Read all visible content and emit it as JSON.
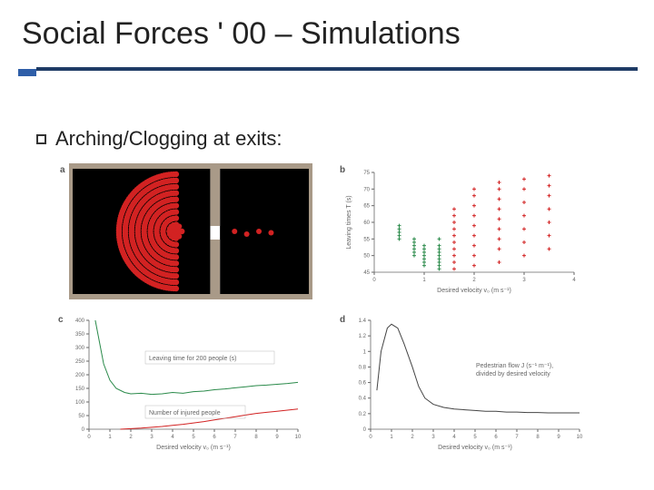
{
  "title": "Social Forces ' 00 – Simulations",
  "bullet": "Arching/Clogging at exits:",
  "panel_a": {
    "label": "a",
    "bgcolor": "#000000",
    "wallcolor": "#a99a88",
    "dotcolor": "#d22222",
    "crowd_center": [
      0.44,
      0.5
    ],
    "crowd_radius": 0.42,
    "escaped": [
      [
        0.68,
        0.5
      ],
      [
        0.73,
        0.52
      ],
      [
        0.78,
        0.5
      ],
      [
        0.83,
        0.51
      ]
    ]
  },
  "panel_b": {
    "label": "b",
    "xaxis": "Desired velocity v₀ (m s⁻¹)",
    "yaxis": "Leaving times T (s)",
    "xlim": [
      0,
      4
    ],
    "xticks": [
      0,
      1,
      2,
      3,
      4
    ],
    "ylim": [
      45,
      75
    ],
    "yticks": [
      45,
      50,
      55,
      60,
      65,
      70,
      75
    ],
    "series": [
      {
        "color": "#2a8a4a",
        "x": 0.5,
        "ys": [
          55,
          56,
          57,
          58,
          59
        ]
      },
      {
        "color": "#2a8a4a",
        "x": 0.8,
        "ys": [
          50,
          51,
          52,
          53,
          54,
          55
        ]
      },
      {
        "color": "#2a8a4a",
        "x": 1.0,
        "ys": [
          47,
          48,
          49,
          50,
          51,
          52,
          53
        ]
      },
      {
        "color": "#2a8a4a",
        "x": 1.3,
        "ys": [
          46,
          47,
          48,
          49,
          50,
          51,
          52,
          53,
          55
        ]
      },
      {
        "color": "#d22222",
        "x": 1.6,
        "ys": [
          46,
          48,
          50,
          52,
          54,
          56,
          58,
          60,
          62,
          64
        ]
      },
      {
        "color": "#d22222",
        "x": 2.0,
        "ys": [
          47,
          50,
          53,
          56,
          59,
          62,
          65,
          68,
          70
        ]
      },
      {
        "color": "#d22222",
        "x": 2.5,
        "ys": [
          48,
          52,
          55,
          58,
          61,
          64,
          67,
          70,
          72
        ]
      },
      {
        "color": "#d22222",
        "x": 3.0,
        "ys": [
          50,
          54,
          58,
          62,
          66,
          70,
          73
        ]
      },
      {
        "color": "#d22222",
        "x": 3.5,
        "ys": [
          52,
          56,
          60,
          64,
          68,
          71,
          74
        ]
      }
    ]
  },
  "panel_c": {
    "label": "c",
    "xaxis": "Desired velocity v₀ (m s⁻¹)",
    "xlim": [
      0,
      10
    ],
    "xticks": [
      0,
      1,
      2,
      3,
      4,
      5,
      6,
      7,
      8,
      9,
      10
    ],
    "ylim": [
      0,
      400
    ],
    "yticks": [
      0,
      50,
      100,
      150,
      200,
      250,
      300,
      350,
      400
    ],
    "legend1": {
      "text": "Leaving time for 200 people (s)",
      "color": "#2a8a4a"
    },
    "legend2": {
      "text": "Number of injured people",
      "color": "#d22222"
    },
    "line1": {
      "color": "#2a8a4a",
      "points": [
        [
          0.3,
          400
        ],
        [
          0.5,
          320
        ],
        [
          0.7,
          240
        ],
        [
          1,
          180
        ],
        [
          1.3,
          150
        ],
        [
          1.7,
          135
        ],
        [
          2,
          130
        ],
        [
          2.5,
          132
        ],
        [
          3,
          128
        ],
        [
          3.5,
          130
        ],
        [
          4,
          135
        ],
        [
          4.5,
          132
        ],
        [
          5,
          138
        ],
        [
          5.5,
          140
        ],
        [
          6,
          145
        ],
        [
          6.5,
          148
        ],
        [
          7,
          152
        ],
        [
          7.5,
          156
        ],
        [
          8,
          160
        ],
        [
          8.5,
          162
        ],
        [
          9,
          165
        ],
        [
          9.5,
          168
        ],
        [
          10,
          172
        ]
      ]
    },
    "line2": {
      "color": "#d22222",
      "points": [
        [
          1.5,
          0
        ],
        [
          2,
          2
        ],
        [
          2.5,
          4
        ],
        [
          3,
          7
        ],
        [
          3.5,
          10
        ],
        [
          4,
          14
        ],
        [
          4.5,
          18
        ],
        [
          5,
          23
        ],
        [
          5.5,
          28
        ],
        [
          6,
          34
        ],
        [
          6.5,
          40
        ],
        [
          7,
          46
        ],
        [
          7.5,
          52
        ],
        [
          8,
          58
        ],
        [
          8.5,
          62
        ],
        [
          9,
          66
        ],
        [
          9.5,
          70
        ],
        [
          10,
          74
        ]
      ]
    }
  },
  "panel_d": {
    "label": "d",
    "xaxis": "Desired velocity v₀ (m s⁻¹)",
    "xlim": [
      0,
      10
    ],
    "xticks": [
      0,
      1,
      2,
      3,
      4,
      5,
      6,
      7,
      8,
      9,
      10
    ],
    "ylim": [
      0,
      1.4
    ],
    "yticks": [
      0,
      0.2,
      0.4,
      0.6,
      0.8,
      1.0,
      1.2,
      1.4
    ],
    "legend": "Pedestrian flow J (s⁻¹ m⁻¹),\ndivided by desired velocity",
    "line": {
      "color": "#444",
      "points": [
        [
          0.3,
          0.5
        ],
        [
          0.5,
          1.0
        ],
        [
          0.8,
          1.3
        ],
        [
          1.0,
          1.35
        ],
        [
          1.3,
          1.3
        ],
        [
          1.6,
          1.1
        ],
        [
          2.0,
          0.8
        ],
        [
          2.3,
          0.55
        ],
        [
          2.6,
          0.4
        ],
        [
          3.0,
          0.32
        ],
        [
          3.5,
          0.28
        ],
        [
          4.0,
          0.26
        ],
        [
          4.5,
          0.25
        ],
        [
          5.0,
          0.24
        ],
        [
          5.5,
          0.23
        ],
        [
          6.0,
          0.23
        ],
        [
          6.5,
          0.22
        ],
        [
          7.0,
          0.22
        ],
        [
          7.5,
          0.215
        ],
        [
          8.0,
          0.215
        ],
        [
          8.5,
          0.21
        ],
        [
          9.0,
          0.21
        ],
        [
          9.5,
          0.21
        ],
        [
          10,
          0.21
        ]
      ]
    }
  }
}
